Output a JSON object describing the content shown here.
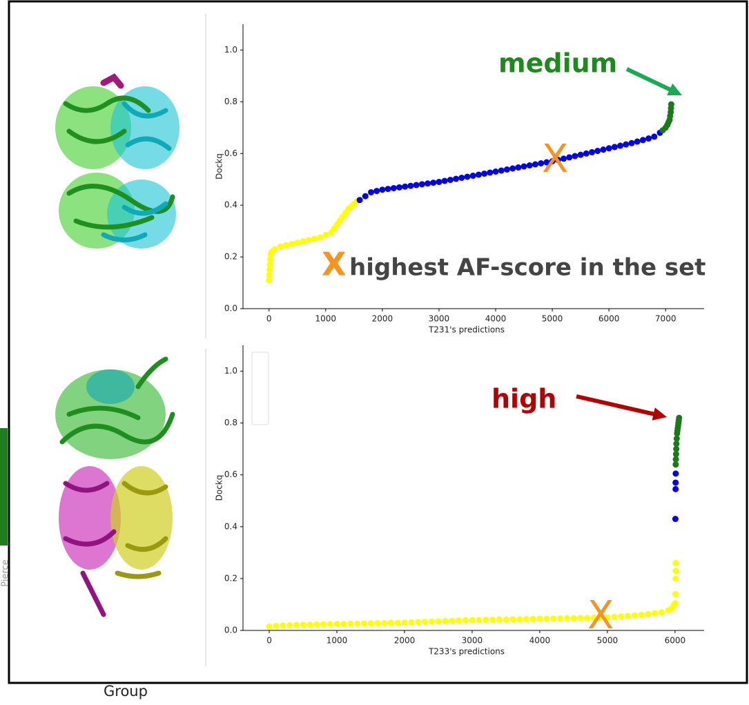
{
  "slide": {
    "group_label": "Group",
    "side_label": "Pierce"
  },
  "chart_data": [
    {
      "type": "scatter",
      "xlabel": "T231's predictions",
      "ylabel": "Dockq",
      "xlim": [
        -460,
        7680
      ],
      "ylim": [
        0,
        1.1
      ],
      "xticks": [
        0,
        1000,
        2000,
        3000,
        4000,
        5000,
        6000,
        7000
      ],
      "yticks": [
        {
          "value": 0,
          "label": "0.0"
        },
        {
          "value": 0.2,
          "label": "0.2"
        },
        {
          "value": 0.4,
          "label": "0.4"
        },
        {
          "value": 0.6,
          "label": "0.6"
        },
        {
          "value": 0.8,
          "label": "0.8"
        },
        {
          "value": 1.0,
          "label": "1.0"
        }
      ],
      "annotations": [
        "medium",
        "X",
        "X",
        "highest AF-score in the set"
      ],
      "series": [
        {
          "color": "#ffff00",
          "x": [
            0,
            5,
            10,
            15,
            20,
            30,
            50,
            100,
            200,
            300,
            400,
            500,
            600,
            700,
            800,
            900,
            1000,
            1100,
            1150,
            1200,
            1250,
            1300,
            1350,
            1400,
            1450,
            1500,
            1550
          ],
          "values": [
            0.11,
            0.13,
            0.15,
            0.17,
            0.19,
            0.21,
            0.22,
            0.23,
            0.24,
            0.245,
            0.25,
            0.255,
            0.26,
            0.265,
            0.27,
            0.275,
            0.285,
            0.295,
            0.31,
            0.325,
            0.34,
            0.355,
            0.37,
            0.385,
            0.395,
            0.405,
            0.415
          ]
        },
        {
          "color": "#0000ee",
          "x": [
            1600,
            1700,
            1800,
            1900,
            2000,
            2100,
            2200,
            2300,
            2400,
            2500,
            2600,
            2700,
            2800,
            2900,
            3000,
            3100,
            3200,
            3300,
            3400,
            3500,
            3600,
            3700,
            3800,
            3900,
            4000,
            4100,
            4200,
            4300,
            4400,
            4500,
            4600,
            4700,
            4800,
            4900,
            5000,
            5100,
            5200,
            5300,
            5400,
            5500,
            5600,
            5700,
            5800,
            5900,
            6000,
            6100,
            6200,
            6300,
            6400,
            6500,
            6600,
            6700,
            6800,
            6900
          ],
          "values": [
            0.42,
            0.435,
            0.45,
            0.455,
            0.46,
            0.463,
            0.466,
            0.469,
            0.472,
            0.475,
            0.478,
            0.481,
            0.484,
            0.487,
            0.49,
            0.494,
            0.498,
            0.502,
            0.506,
            0.51,
            0.514,
            0.518,
            0.522,
            0.526,
            0.53,
            0.534,
            0.538,
            0.542,
            0.546,
            0.55,
            0.554,
            0.558,
            0.562,
            0.566,
            0.57,
            0.575,
            0.58,
            0.585,
            0.59,
            0.595,
            0.6,
            0.605,
            0.61,
            0.615,
            0.62,
            0.625,
            0.63,
            0.635,
            0.64,
            0.646,
            0.652,
            0.658,
            0.665,
            0.68
          ]
        },
        {
          "color": "#1a7a1a",
          "x": [
            6950,
            7000,
            7030,
            7050,
            7070,
            7080,
            7090,
            7095,
            7100
          ],
          "values": [
            0.69,
            0.7,
            0.71,
            0.72,
            0.73,
            0.745,
            0.76,
            0.775,
            0.79
          ]
        }
      ]
    },
    {
      "type": "scatter",
      "xlabel": "T233's predictions",
      "ylabel": "Dockq",
      "xlim": [
        -388,
        6430
      ],
      "ylim": [
        0,
        1.1
      ],
      "xticks": [
        0,
        1000,
        2000,
        3000,
        4000,
        5000,
        6000
      ],
      "yticks": [
        {
          "value": 0,
          "label": "0.0"
        },
        {
          "value": 0.2,
          "label": "0.2"
        },
        {
          "value": 0.4,
          "label": "0.4"
        },
        {
          "value": 0.6,
          "label": "0.6"
        },
        {
          "value": 0.8,
          "label": "0.8"
        },
        {
          "value": 1.0,
          "label": "1.0"
        }
      ],
      "annotations": [
        "high",
        "X"
      ],
      "series": [
        {
          "color": "#ffff00",
          "x": [
            0,
            100,
            200,
            300,
            400,
            500,
            600,
            700,
            800,
            900,
            1000,
            1100,
            1200,
            1300,
            1400,
            1500,
            1600,
            1700,
            1800,
            1900,
            2000,
            2100,
            2200,
            2300,
            2400,
            2500,
            2600,
            2700,
            2800,
            2900,
            3000,
            3100,
            3200,
            3300,
            3400,
            3500,
            3600,
            3700,
            3800,
            3900,
            4000,
            4100,
            4200,
            4300,
            4400,
            4500,
            4600,
            4700,
            4800,
            4900,
            5000,
            5100,
            5200,
            5300,
            5400,
            5500,
            5600,
            5700,
            5800,
            5900,
            5950,
            5980,
            6000,
            6005,
            6008,
            6010,
            6010
          ],
          "values": [
            0.015,
            0.017,
            0.019,
            0.02,
            0.021,
            0.022,
            0.022,
            0.023,
            0.024,
            0.024,
            0.025,
            0.025,
            0.026,
            0.026,
            0.027,
            0.027,
            0.028,
            0.028,
            0.029,
            0.029,
            0.03,
            0.031,
            0.032,
            0.033,
            0.034,
            0.035,
            0.036,
            0.037,
            0.038,
            0.039,
            0.04,
            0.04,
            0.041,
            0.041,
            0.042,
            0.042,
            0.043,
            0.043,
            0.044,
            0.044,
            0.045,
            0.045,
            0.046,
            0.046,
            0.047,
            0.047,
            0.048,
            0.048,
            0.049,
            0.049,
            0.05,
            0.052,
            0.054,
            0.056,
            0.058,
            0.06,
            0.063,
            0.066,
            0.07,
            0.078,
            0.085,
            0.095,
            0.105,
            0.14,
            0.2,
            0.23,
            0.26
          ]
        },
        {
          "color": "#0000ee",
          "x": [
            6005,
            6008,
            6008,
            6010
          ],
          "values": [
            0.43,
            0.545,
            0.57,
            0.605
          ]
        },
        {
          "color": "#1a7a1a",
          "x": [
            6010,
            6012,
            6015,
            6018,
            6020,
            6025,
            6030,
            6035,
            6040,
            6045,
            6050,
            6055,
            6060
          ],
          "values": [
            0.64,
            0.66,
            0.68,
            0.7,
            0.72,
            0.74,
            0.76,
            0.77,
            0.78,
            0.79,
            0.8,
            0.81,
            0.82
          ]
        }
      ]
    }
  ]
}
